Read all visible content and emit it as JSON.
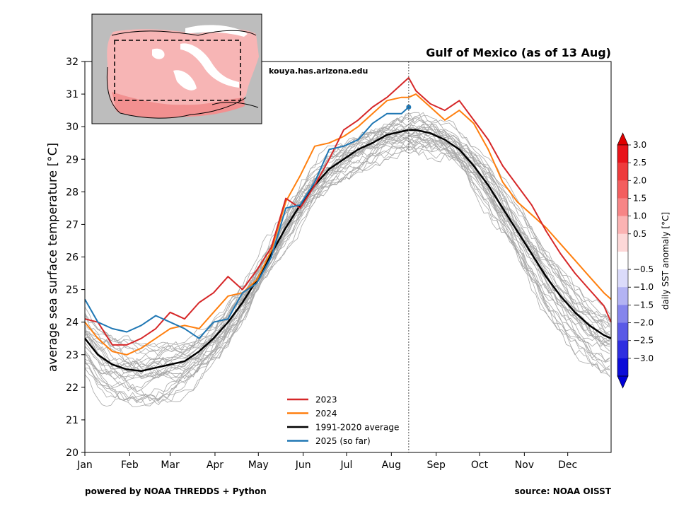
{
  "chart_data": {
    "type": "line",
    "title": "Gulf of Mexico (as of 13 Aug)",
    "ylabel": "average sea surface temperature [°C]",
    "ylim": [
      20,
      32
    ],
    "xlim": [
      1,
      365
    ],
    "yticks": [
      20,
      21,
      22,
      23,
      24,
      25,
      26,
      27,
      28,
      29,
      30,
      31,
      32
    ],
    "xticks": [
      {
        "label": "Jan",
        "day": 1
      },
      {
        "label": "Feb",
        "day": 32
      },
      {
        "label": "Mar",
        "day": 60
      },
      {
        "label": "Apr",
        "day": 91
      },
      {
        "label": "May",
        "day": 121
      },
      {
        "label": "Jun",
        "day": 152
      },
      {
        "label": "Jul",
        "day": 182
      },
      {
        "label": "Aug",
        "day": 213
      },
      {
        "label": "Sep",
        "day": 244
      },
      {
        "label": "Oct",
        "day": 274
      },
      {
        "label": "Nov",
        "day": 305
      },
      {
        "label": "Dec",
        "day": 335
      }
    ],
    "current_day_marker": 225,
    "annotation": "kouya.has.arizona.edu",
    "legend_position": "lower-center",
    "series": [
      {
        "name": "2023",
        "color": "#d62728",
        "width": 2,
        "x": [
          1,
          10,
          20,
          30,
          40,
          50,
          60,
          70,
          80,
          90,
          100,
          110,
          120,
          130,
          140,
          150,
          160,
          170,
          180,
          190,
          200,
          210,
          220,
          225,
          230,
          240,
          250,
          260,
          270,
          280,
          290,
          300,
          310,
          320,
          330,
          340,
          350,
          360,
          365
        ],
        "y": [
          24.1,
          24.0,
          23.3,
          23.3,
          23.5,
          23.8,
          24.3,
          24.1,
          24.6,
          24.9,
          25.4,
          25.0,
          25.6,
          26.3,
          27.8,
          27.5,
          28.2,
          29.0,
          29.9,
          30.2,
          30.6,
          30.9,
          31.3,
          31.5,
          31.1,
          30.7,
          30.5,
          30.8,
          30.2,
          29.6,
          28.8,
          28.2,
          27.6,
          26.8,
          26.1,
          25.5,
          25.0,
          24.5,
          24.0
        ]
      },
      {
        "name": "2024",
        "color": "#ff7f0e",
        "width": 2,
        "x": [
          1,
          10,
          20,
          30,
          40,
          50,
          60,
          70,
          80,
          90,
          100,
          110,
          120,
          130,
          140,
          150,
          160,
          170,
          180,
          190,
          200,
          210,
          220,
          225,
          230,
          240,
          250,
          260,
          270,
          280,
          290,
          300,
          310,
          320,
          330,
          340,
          350,
          360,
          365
        ],
        "y": [
          24.0,
          23.5,
          23.1,
          23.0,
          23.2,
          23.5,
          23.8,
          23.9,
          23.8,
          24.3,
          24.8,
          24.9,
          25.3,
          26.2,
          27.7,
          28.5,
          29.4,
          29.5,
          29.7,
          30.0,
          30.4,
          30.8,
          30.9,
          30.9,
          31.0,
          30.6,
          30.2,
          30.5,
          30.1,
          29.3,
          28.3,
          27.7,
          27.3,
          26.9,
          26.4,
          25.9,
          25.4,
          24.9,
          24.7
        ]
      },
      {
        "name": "1991-2020 average",
        "color": "#000000",
        "width": 2.5,
        "x": [
          1,
          10,
          20,
          30,
          40,
          50,
          60,
          70,
          80,
          90,
          100,
          110,
          120,
          130,
          140,
          150,
          160,
          170,
          180,
          190,
          200,
          210,
          220,
          225,
          230,
          240,
          250,
          260,
          270,
          280,
          290,
          300,
          310,
          320,
          330,
          340,
          350,
          360,
          365
        ],
        "y": [
          23.5,
          23.0,
          22.7,
          22.55,
          22.5,
          22.6,
          22.7,
          22.8,
          23.1,
          23.5,
          24.0,
          24.6,
          25.3,
          26.1,
          26.9,
          27.6,
          28.2,
          28.7,
          29.0,
          29.3,
          29.5,
          29.75,
          29.85,
          29.9,
          29.9,
          29.8,
          29.6,
          29.3,
          28.8,
          28.2,
          27.5,
          26.8,
          26.1,
          25.4,
          24.8,
          24.3,
          23.9,
          23.6,
          23.5
        ]
      },
      {
        "name": "2025 (so far)",
        "color": "#1f77b4",
        "width": 2,
        "x": [
          1,
          10,
          20,
          30,
          40,
          50,
          60,
          70,
          80,
          90,
          100,
          110,
          120,
          130,
          140,
          150,
          160,
          170,
          180,
          190,
          200,
          210,
          220,
          225
        ],
        "y": [
          24.7,
          24.0,
          23.8,
          23.7,
          23.9,
          24.2,
          24.0,
          23.8,
          23.5,
          24.0,
          24.1,
          24.9,
          25.2,
          26.0,
          27.5,
          27.6,
          28.3,
          29.3,
          29.4,
          29.6,
          30.1,
          30.4,
          30.4,
          30.6
        ]
      }
    ]
  },
  "colorbar": {
    "label": "daily SST anomaly [°C]",
    "ticks": [
      "3.0",
      "2.5",
      "2.0",
      "1.5",
      "1.0",
      "0.5",
      "−0.5",
      "−1.0",
      "−1.5",
      "−2.0",
      "−2.5",
      "−3.0"
    ],
    "colors": [
      "#e8131a",
      "#ee3b3c",
      "#f35e5f",
      "#f78586",
      "#fbb3b3",
      "#fdd8d8",
      "#ffffff",
      "#dbdbfa",
      "#b3b3f3",
      "#8585ec",
      "#5a5ae6",
      "#2e2ee0",
      "#0c0cd8"
    ],
    "top_arrow_color": "#e00000",
    "bottom_arrow_color": "#0000d8"
  },
  "footer": {
    "left": "powered by NOAA THREDDS + Python",
    "right": "source: NOAA OISST"
  }
}
